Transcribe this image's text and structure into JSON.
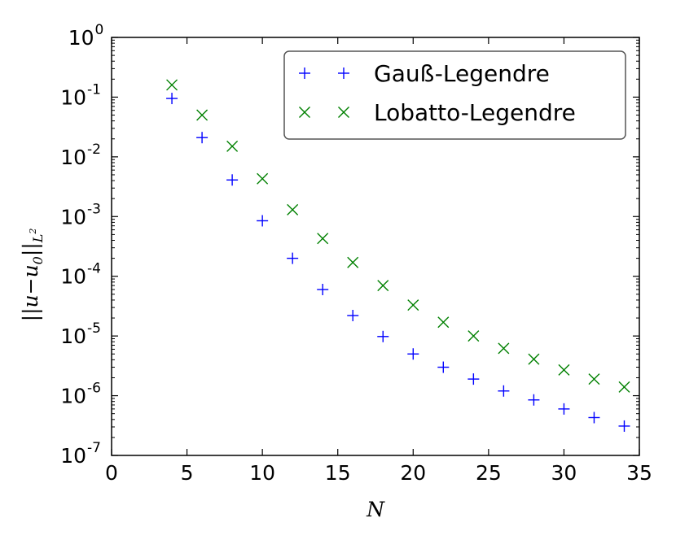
{
  "chart_data": {
    "type": "scatter",
    "xlabel": "N",
    "ylabel": "||u−u0||L²",
    "xlim": [
      0,
      35
    ],
    "ylim": [
      1e-07,
      1
    ],
    "yscale": "log",
    "grid": false,
    "legend_position": "top-right",
    "x_ticks": [
      "0",
      "5",
      "10",
      "15",
      "20",
      "25",
      "30",
      "35"
    ],
    "y_ticks": [
      {
        "base": "10",
        "exp": "-7"
      },
      {
        "base": "10",
        "exp": "-6"
      },
      {
        "base": "10",
        "exp": "-5"
      },
      {
        "base": "10",
        "exp": "-4"
      },
      {
        "base": "10",
        "exp": "-3"
      },
      {
        "base": "10",
        "exp": "-2"
      },
      {
        "base": "10",
        "exp": "-1"
      },
      {
        "base": "10",
        "exp": "0"
      }
    ],
    "series": [
      {
        "name": "Gauß-Legendre",
        "marker": "plus",
        "color": "#0000ff",
        "x": [
          4,
          6,
          8,
          10,
          12,
          14,
          16,
          18,
          20,
          22,
          24,
          26,
          28,
          30,
          32,
          34
        ],
        "y": [
          0.095,
          0.021,
          0.0041,
          0.00085,
          0.0002,
          6e-05,
          2.2e-05,
          9.8e-06,
          5e-06,
          3e-06,
          1.9e-06,
          1.2e-06,
          8.5e-07,
          6e-07,
          4.3e-07,
          3.1e-07
        ]
      },
      {
        "name": "Lobatto-Legendre",
        "marker": "x",
        "color": "#008000",
        "x": [
          4,
          6,
          8,
          10,
          12,
          14,
          16,
          18,
          20,
          22,
          24,
          26,
          28,
          30,
          32,
          34
        ],
        "y": [
          0.16,
          0.05,
          0.015,
          0.0043,
          0.0013,
          0.00043,
          0.00017,
          7e-05,
          3.3e-05,
          1.7e-05,
          1e-05,
          6.2e-06,
          4.1e-06,
          2.7e-06,
          1.9e-06,
          1.4e-06
        ]
      }
    ]
  }
}
